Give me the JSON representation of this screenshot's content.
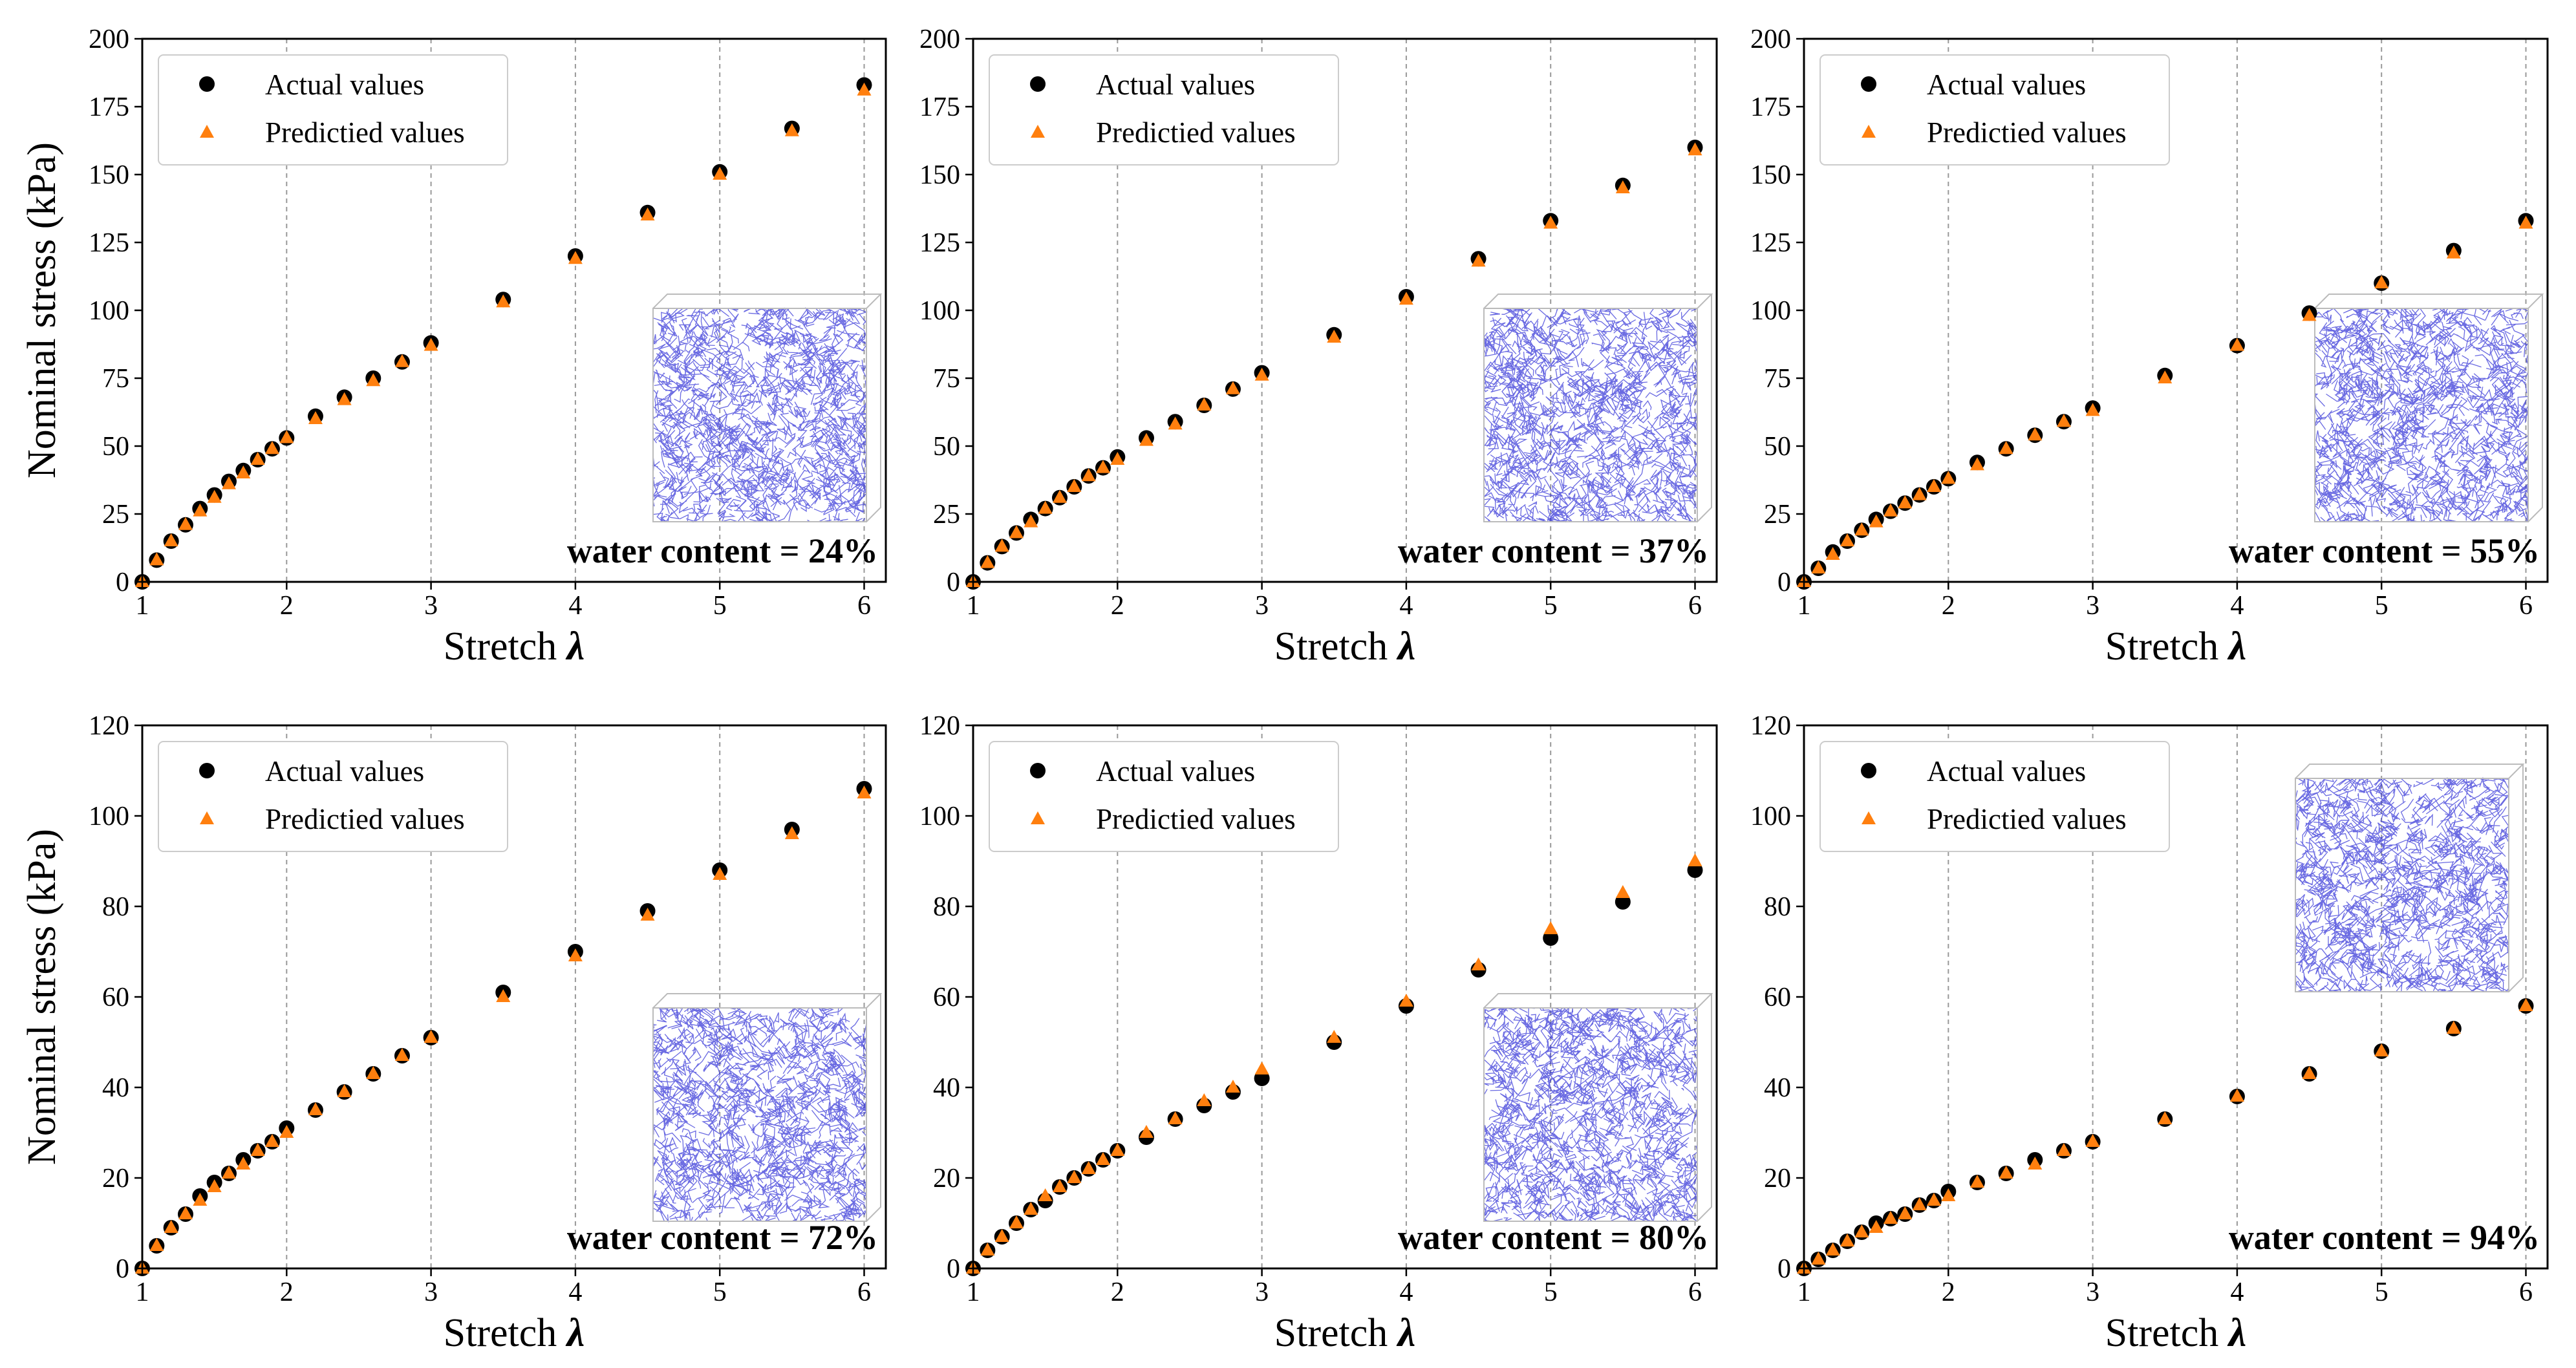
{
  "figure": {
    "x_label_text": "Stretch",
    "x_label_symbol": "λ",
    "y_label": "Nominal stress (kPa)",
    "legend": {
      "actual": "Actual values",
      "predicted": "Predictied values"
    },
    "colors": {
      "actual": "#000000",
      "predicted": "#ff7f0e",
      "network": "#2b2bd6",
      "gridline": "#999999"
    }
  },
  "chart_data": [
    {
      "type": "scatter",
      "annotation": "water content = 24%",
      "xlim": [
        1,
        6.15
      ],
      "ylim": [
        0,
        200
      ],
      "x_ticks": [
        1,
        2,
        3,
        4,
        5,
        6
      ],
      "y_ticks": [
        0,
        25,
        50,
        75,
        100,
        125,
        150,
        175,
        200
      ],
      "vlines": [
        2,
        3,
        4,
        5,
        6
      ],
      "legend_position": "top-left",
      "inset_position": "right-middle",
      "x": [
        1.0,
        1.1,
        1.2,
        1.3,
        1.4,
        1.5,
        1.6,
        1.7,
        1.8,
        1.9,
        2.0,
        2.2,
        2.4,
        2.6,
        2.8,
        3.0,
        3.5,
        4.0,
        4.5,
        5.0,
        5.5,
        6.0
      ],
      "series": [
        {
          "name": "Actual values",
          "values": [
            0,
            8,
            15,
            21,
            27,
            32,
            37,
            41,
            45,
            49,
            53,
            61,
            68,
            75,
            81,
            88,
            104,
            120,
            136,
            151,
            167,
            183
          ]
        },
        {
          "name": "Predictied values",
          "values": [
            0,
            8,
            15,
            21,
            26,
            31,
            36,
            40,
            45,
            49,
            53,
            60,
            67,
            74,
            81,
            87,
            103,
            119,
            135,
            150,
            166,
            181
          ]
        }
      ]
    },
    {
      "type": "scatter",
      "annotation": "water content = 37%",
      "xlim": [
        1,
        6.15
      ],
      "ylim": [
        0,
        200
      ],
      "x_ticks": [
        1,
        2,
        3,
        4,
        5,
        6
      ],
      "y_ticks": [
        0,
        25,
        50,
        75,
        100,
        125,
        150,
        175,
        200
      ],
      "vlines": [
        2,
        3,
        4,
        5,
        6
      ],
      "legend_position": "top-left",
      "inset_position": "right-middle",
      "x": [
        1.0,
        1.1,
        1.2,
        1.3,
        1.4,
        1.5,
        1.6,
        1.7,
        1.8,
        1.9,
        2.0,
        2.2,
        2.4,
        2.6,
        2.8,
        3.0,
        3.5,
        4.0,
        4.5,
        5.0,
        5.5,
        6.0
      ],
      "series": [
        {
          "name": "Actual values",
          "values": [
            0,
            7,
            13,
            18,
            23,
            27,
            31,
            35,
            39,
            42,
            46,
            53,
            59,
            65,
            71,
            77,
            91,
            105,
            119,
            133,
            146,
            160
          ]
        },
        {
          "name": "Predictied values",
          "values": [
            0,
            7,
            13,
            18,
            22,
            27,
            31,
            35,
            39,
            42,
            45,
            52,
            58,
            65,
            71,
            76,
            90,
            104,
            118,
            132,
            145,
            159
          ]
        }
      ]
    },
    {
      "type": "scatter",
      "annotation": "water content = 55%",
      "xlim": [
        1,
        6.15
      ],
      "ylim": [
        0,
        200
      ],
      "x_ticks": [
        1,
        2,
        3,
        4,
        5,
        6
      ],
      "y_ticks": [
        0,
        25,
        50,
        75,
        100,
        125,
        150,
        175,
        200
      ],
      "vlines": [
        2,
        3,
        4,
        5,
        6
      ],
      "legend_position": "top-left",
      "inset_position": "right-middle",
      "x": [
        1.0,
        1.1,
        1.2,
        1.3,
        1.4,
        1.5,
        1.6,
        1.7,
        1.8,
        1.9,
        2.0,
        2.2,
        2.4,
        2.6,
        2.8,
        3.0,
        3.5,
        4.0,
        4.5,
        5.0,
        5.5,
        6.0
      ],
      "series": [
        {
          "name": "Actual values",
          "values": [
            0,
            5,
            11,
            15,
            19,
            23,
            26,
            29,
            32,
            35,
            38,
            44,
            49,
            54,
            59,
            64,
            76,
            87,
            99,
            110,
            122,
            133
          ]
        },
        {
          "name": "Predictied values",
          "values": [
            0,
            5,
            10,
            15,
            19,
            22,
            26,
            29,
            32,
            35,
            38,
            43,
            49,
            54,
            59,
            63,
            75,
            87,
            98,
            110,
            121,
            132
          ]
        }
      ]
    },
    {
      "type": "scatter",
      "annotation": "water content = 72%",
      "xlim": [
        1,
        6.15
      ],
      "ylim": [
        0,
        120
      ],
      "x_ticks": [
        1,
        2,
        3,
        4,
        5,
        6
      ],
      "y_ticks": [
        0,
        20,
        40,
        60,
        80,
        100,
        120
      ],
      "vlines": [
        2,
        3,
        4,
        5,
        6
      ],
      "legend_position": "top-left",
      "inset_position": "right-bottom",
      "x": [
        1.0,
        1.1,
        1.2,
        1.3,
        1.4,
        1.5,
        1.6,
        1.7,
        1.8,
        1.9,
        2.0,
        2.2,
        2.4,
        2.6,
        2.8,
        3.0,
        3.5,
        4.0,
        4.5,
        5.0,
        5.5,
        6.0
      ],
      "series": [
        {
          "name": "Actual values",
          "values": [
            0,
            5,
            9,
            12,
            16,
            19,
            21,
            24,
            26,
            28,
            31,
            35,
            39,
            43,
            47,
            51,
            61,
            70,
            79,
            88,
            97,
            106
          ]
        },
        {
          "name": "Predictied values",
          "values": [
            0,
            5,
            9,
            12,
            15,
            18,
            21,
            23,
            26,
            28,
            30,
            35,
            39,
            43,
            47,
            51,
            60,
            69,
            78,
            87,
            96,
            105
          ]
        }
      ]
    },
    {
      "type": "scatter",
      "annotation": "water content = 80%",
      "xlim": [
        1,
        6.15
      ],
      "ylim": [
        0,
        120
      ],
      "x_ticks": [
        1,
        2,
        3,
        4,
        5,
        6
      ],
      "y_ticks": [
        0,
        20,
        40,
        60,
        80,
        100,
        120
      ],
      "vlines": [
        2,
        3,
        4,
        5,
        6
      ],
      "legend_position": "top-left",
      "inset_position": "right-bottom",
      "x": [
        1.0,
        1.1,
        1.2,
        1.3,
        1.4,
        1.5,
        1.6,
        1.7,
        1.8,
        1.9,
        2.0,
        2.2,
        2.4,
        2.6,
        2.8,
        3.0,
        3.5,
        4.0,
        4.5,
        5.0,
        5.5,
        6.0
      ],
      "series": [
        {
          "name": "Actual values",
          "values": [
            0,
            4,
            7,
            10,
            13,
            15,
            18,
            20,
            22,
            24,
            26,
            29,
            33,
            36,
            39,
            42,
            50,
            58,
            66,
            73,
            81,
            88
          ]
        },
        {
          "name": "Predictied values",
          "values": [
            0,
            4,
            7,
            10,
            13,
            16,
            18,
            20,
            22,
            24,
            26,
            30,
            33,
            37,
            40,
            44,
            51,
            59,
            67,
            75,
            83,
            90
          ]
        }
      ]
    },
    {
      "type": "scatter",
      "annotation": "water content = 94%",
      "xlim": [
        1,
        6.15
      ],
      "ylim": [
        0,
        120
      ],
      "x_ticks": [
        1,
        2,
        3,
        4,
        5,
        6
      ],
      "y_ticks": [
        0,
        20,
        40,
        60,
        80,
        100,
        120
      ],
      "vlines": [
        2,
        3,
        4,
        5,
        6
      ],
      "legend_position": "top-left",
      "inset_position": "right-top",
      "x": [
        1.0,
        1.1,
        1.2,
        1.3,
        1.4,
        1.5,
        1.6,
        1.7,
        1.8,
        1.9,
        2.0,
        2.2,
        2.4,
        2.6,
        2.8,
        3.0,
        3.5,
        4.0,
        4.5,
        5.0,
        5.5,
        6.0
      ],
      "series": [
        {
          "name": "Actual values",
          "values": [
            0,
            2,
            4,
            6,
            8,
            10,
            11,
            12,
            14,
            15,
            17,
            19,
            21,
            24,
            26,
            28,
            33,
            38,
            43,
            48,
            53,
            58
          ]
        },
        {
          "name": "Predictied values",
          "values": [
            0,
            2,
            4,
            6,
            8,
            9,
            11,
            12,
            14,
            15,
            16,
            19,
            21,
            23,
            26,
            28,
            33,
            38,
            43,
            48,
            53,
            58
          ]
        }
      ]
    }
  ]
}
